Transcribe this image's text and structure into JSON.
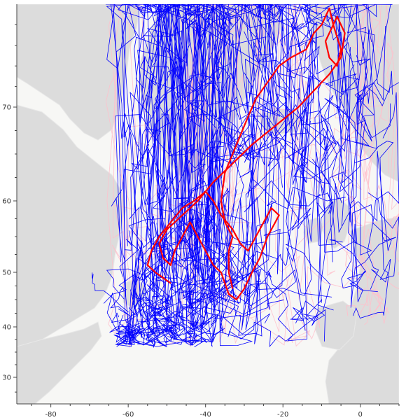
{
  "map": {
    "basemap": "light-gray-tiles",
    "colors": {
      "ocean": "#f7f7f5",
      "land": "#dcdcdc",
      "coast": "#ececec",
      "tracks_primary": "#0000ff",
      "tracks_secondary": "#ffc0cb",
      "track_highlight": "#ff0000"
    }
  },
  "chart_data": {
    "type": "line",
    "title": "",
    "xlabel": "",
    "ylabel": "",
    "xlim": [
      -88.8,
      10
    ],
    "ylim": [
      25.5,
      82.5
    ],
    "x_ticks": [
      -80,
      -60,
      -40,
      -20,
      0
    ],
    "y_ticks": [
      30,
      40,
      50,
      60,
      70
    ],
    "grid": false,
    "legend": "none",
    "series": [
      {
        "role": "highlighted-track",
        "color": "#ff0000",
        "points": [
          [
            -33,
            47
          ],
          [
            -34,
            50
          ],
          [
            -34,
            53
          ],
          [
            -33,
            55
          ],
          [
            -35,
            57
          ],
          [
            -36,
            60
          ],
          [
            -35,
            63
          ],
          [
            -33,
            65
          ],
          [
            -31,
            67
          ],
          [
            -29,
            69
          ],
          [
            -27,
            71
          ],
          [
            -24,
            73
          ],
          [
            -21,
            75
          ],
          [
            -18,
            76
          ],
          [
            -14,
            77
          ],
          [
            -12,
            79
          ],
          [
            -10,
            80
          ],
          [
            -8,
            82
          ],
          [
            -7,
            80
          ],
          [
            -9,
            78
          ],
          [
            -8,
            76
          ],
          [
            -6,
            75
          ],
          [
            -5,
            77
          ],
          [
            -7,
            80
          ],
          [
            -6,
            81
          ],
          [
            -4,
            79
          ],
          [
            -5,
            76
          ],
          [
            -8,
            74
          ],
          [
            -12,
            72
          ],
          [
            -16,
            70
          ],
          [
            -22,
            68
          ],
          [
            -28,
            66
          ],
          [
            -33,
            64
          ],
          [
            -38,
            62
          ],
          [
            -42,
            60
          ],
          [
            -46,
            58
          ],
          [
            -50,
            56
          ],
          [
            -52,
            54
          ],
          [
            -51,
            52
          ],
          [
            -49,
            51
          ],
          [
            -48,
            53
          ],
          [
            -46,
            55
          ],
          [
            -44,
            57
          ],
          [
            -42,
            55
          ],
          [
            -40,
            53
          ],
          [
            -38,
            51
          ],
          [
            -36,
            50
          ],
          [
            -35,
            48
          ],
          [
            -34,
            46
          ],
          [
            -32,
            45
          ],
          [
            -30,
            47
          ],
          [
            -28,
            50
          ],
          [
            -26,
            52
          ],
          [
            -24,
            55
          ],
          [
            -22,
            57
          ],
          [
            -21,
            58
          ],
          [
            -23,
            59
          ],
          [
            -25,
            57
          ],
          [
            -27,
            55
          ],
          [
            -29,
            53
          ],
          [
            -31,
            54
          ],
          [
            -33,
            56
          ],
          [
            -36,
            58
          ],
          [
            -38,
            60
          ],
          [
            -40,
            61
          ],
          [
            -43,
            60
          ],
          [
            -46,
            59
          ],
          [
            -49,
            57
          ],
          [
            -52,
            55
          ],
          [
            -54,
            53
          ],
          [
            -55,
            51
          ],
          [
            -53,
            50
          ],
          [
            -51,
            49
          ],
          [
            -49,
            48
          ]
        ]
      },
      {
        "role": "bulk-tracks-blue",
        "color": "#0000ff",
        "description_count": 120
      },
      {
        "role": "bulk-tracks-pink",
        "color": "#ffc0cb",
        "description_count": 40
      }
    ]
  }
}
